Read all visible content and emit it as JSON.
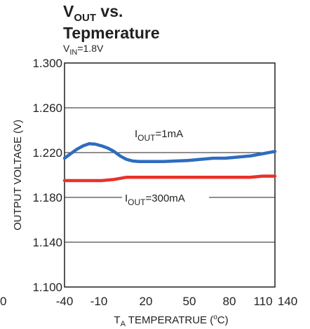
{
  "chart_data": {
    "type": "line",
    "title": {
      "prefix": "V",
      "sub": "OUT",
      "rest": " vs.",
      "line2": "Tepmerature"
    },
    "subtitle": {
      "prefix": "V",
      "sub": "IN",
      "rest": "=1.8V"
    },
    "xlabel": {
      "prefix": "T",
      "sub": "A",
      "rest": " TEMPERATRUE (",
      "sup": "o",
      "end": "C)"
    },
    "ylabel": "OUTPUT VOLTAGE (V)",
    "xlim": [
      -40,
      130
    ],
    "ylim": [
      1.1,
      1.3
    ],
    "x_ticks": [
      -40,
      -10,
      20,
      50,
      80,
      110,
      140
    ],
    "x_tick_labels": [
      "-40",
      "-10",
      "20",
      "50",
      "80",
      "110",
      "140"
    ],
    "y_ticks": [
      1.1,
      1.14,
      1.18,
      1.22,
      1.26,
      1.3
    ],
    "y_tick_labels": [
      "1.100",
      "1.140",
      "1.180",
      "1.220",
      "1.260",
      "1.300"
    ],
    "grid": true,
    "stray_left_label": "0",
    "series": [
      {
        "name": {
          "prefix": "I",
          "sub": "OUT",
          "rest": "=1mA"
        },
        "color": "#2f6cbf",
        "points": [
          [
            -40,
            1.215
          ],
          [
            -35,
            1.219
          ],
          [
            -30,
            1.223
          ],
          [
            -25,
            1.226
          ],
          [
            -20,
            1.228
          ],
          [
            -15,
            1.2275
          ],
          [
            -10,
            1.226
          ],
          [
            -5,
            1.224
          ],
          [
            0,
            1.221
          ],
          [
            5,
            1.217
          ],
          [
            10,
            1.214
          ],
          [
            15,
            1.2125
          ],
          [
            20,
            1.212
          ],
          [
            30,
            1.212
          ],
          [
            40,
            1.212
          ],
          [
            50,
            1.2125
          ],
          [
            60,
            1.213
          ],
          [
            70,
            1.214
          ],
          [
            80,
            1.215
          ],
          [
            90,
            1.215
          ],
          [
            100,
            1.216
          ],
          [
            110,
            1.217
          ],
          [
            120,
            1.219
          ],
          [
            130,
            1.221
          ]
        ]
      },
      {
        "name": {
          "prefix": "I",
          "sub": "OUT",
          "rest": "=300mA"
        },
        "color": "#e8322b",
        "points": [
          [
            -40,
            1.195
          ],
          [
            -30,
            1.195
          ],
          [
            -20,
            1.195
          ],
          [
            -10,
            1.195
          ],
          [
            0,
            1.196
          ],
          [
            5,
            1.197
          ],
          [
            10,
            1.198
          ],
          [
            20,
            1.198
          ],
          [
            40,
            1.198
          ],
          [
            60,
            1.198
          ],
          [
            80,
            1.198
          ],
          [
            100,
            1.198
          ],
          [
            110,
            1.198
          ],
          [
            120,
            1.199
          ],
          [
            130,
            1.199
          ]
        ]
      }
    ]
  }
}
